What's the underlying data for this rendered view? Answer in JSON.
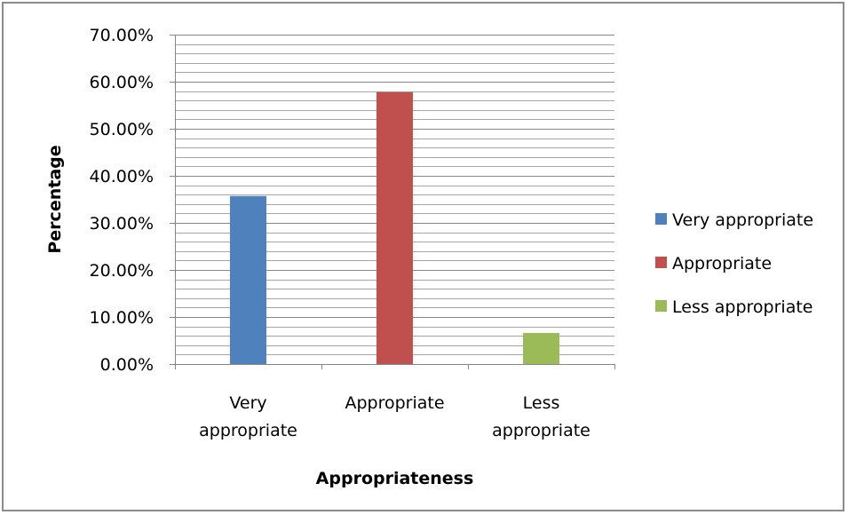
{
  "chart_data": {
    "type": "bar",
    "title": "",
    "xlabel": "Appropriateness",
    "ylabel": "Percentage",
    "ylim": [
      0,
      70
    ],
    "y_tick_step": 10,
    "y_minor_step": 2,
    "y_tick_format": "percent_2dp",
    "grid": true,
    "legend_position": "right",
    "categories": [
      {
        "lines": [
          "Very",
          "appropriate"
        ]
      },
      {
        "lines": [
          "Appropriate"
        ]
      },
      {
        "lines": [
          "Less",
          "appropriate"
        ]
      }
    ],
    "series": [
      {
        "name": "Very appropriate",
        "color": "#4f81bd",
        "values": [
          35.7,
          null,
          null
        ]
      },
      {
        "name": "Appropriate",
        "color": "#c0504d",
        "values": [
          null,
          57.8,
          null
        ]
      },
      {
        "name": "Less appropriate",
        "color": "#9bbb59",
        "values": [
          null,
          null,
          6.6
        ]
      }
    ]
  }
}
